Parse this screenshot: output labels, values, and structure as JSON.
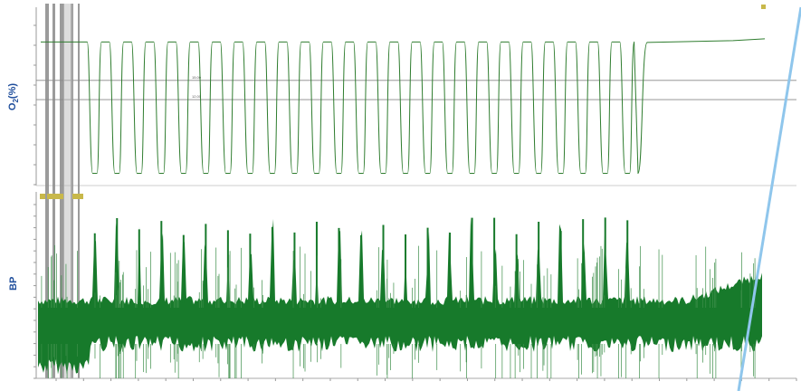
{
  "chart_data": [
    {
      "type": "line",
      "ylabel": "O",
      "ylabel_sub": "2",
      "ylabel_unit": "(%)",
      "cycles": 25,
      "y_high": 21,
      "y_low": 0.5,
      "y_tail": 21.2,
      "reference_lines": [
        {
          "label": "15.00",
          "value": 15
        },
        {
          "label": "12.00",
          "value": 12
        }
      ],
      "ylim": [
        0,
        25
      ],
      "line_color": "#2f7d2f"
    },
    {
      "type": "area",
      "ylabel": "BP",
      "ylim": [
        0,
        200
      ],
      "baseline": 90,
      "fill_color": "#177a2b",
      "x_tick_count": 28,
      "peak_count": 25
    }
  ],
  "colors": {
    "accent": "#1f4e9c",
    "gray_bands": "#8a8a8a",
    "overlay_line": "#8fc6ec",
    "marker": "#c8b84a"
  }
}
